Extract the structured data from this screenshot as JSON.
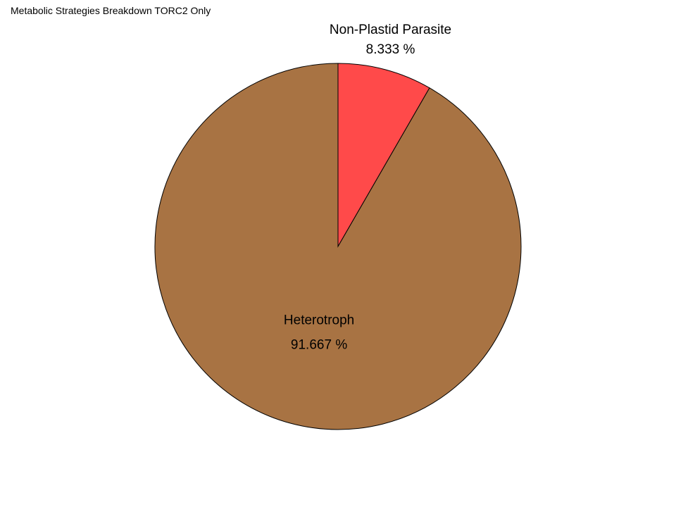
{
  "chart_data": {
    "type": "pie",
    "title": "Metabolic Strategies Breakdown TORC2 Only",
    "start_angle": "top",
    "direction": "clockwise",
    "slices": [
      {
        "label": "Non-Plastid Parasite",
        "value": 8.333,
        "value_text": "8.333 %",
        "color": "#FF4A4A"
      },
      {
        "label": "Heterotroph",
        "value": 91.667,
        "value_text": "91.667 %",
        "color": "#A87343"
      }
    ],
    "edge_color": "#000000"
  }
}
